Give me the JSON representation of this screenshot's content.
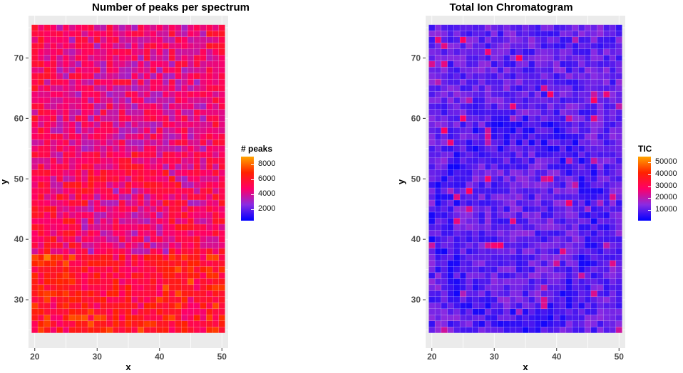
{
  "chart_data": [
    {
      "type": "heatmap",
      "title": "Number of peaks per spectrum",
      "xlabel": "x",
      "ylabel": "y",
      "xlim": [
        19,
        51
      ],
      "ylim": [
        22,
        77
      ],
      "x_range": [
        20,
        50
      ],
      "y_range": [
        25,
        75
      ],
      "xticks": [
        20,
        30,
        40,
        50
      ],
      "yticks": [
        30,
        40,
        50,
        60,
        70
      ],
      "legend": {
        "title": "# peaks",
        "breaks": [
          2000,
          4000,
          6000,
          8000
        ],
        "labels": [
          "2000",
          "4000",
          "6000",
          "8000"
        ],
        "range": [
          500,
          9000
        ],
        "position": "right"
      },
      "colors": [
        "#0000FF",
        "#8A2BE2",
        "#FF0066",
        "#FF2200",
        "#FFA500"
      ],
      "grid": true
    },
    {
      "type": "heatmap",
      "title": "Total Ion Chromatogram",
      "xlabel": "x",
      "ylabel": "y",
      "xlim": [
        19,
        51
      ],
      "ylim": [
        22,
        77
      ],
      "x_range": [
        20,
        50
      ],
      "y_range": [
        25,
        75
      ],
      "xticks": [
        20,
        30,
        40,
        50
      ],
      "yticks": [
        30,
        40,
        50,
        60,
        70
      ],
      "legend": {
        "title": "TIC",
        "breaks": [
          10000,
          20000,
          30000,
          40000,
          50000
        ],
        "labels": [
          "10000",
          "20000",
          "30000",
          "40000",
          "50000"
        ],
        "range": [
          1000,
          55000
        ],
        "position": "right"
      },
      "colors": [
        "#0000FF",
        "#8A2BE2",
        "#FF0066",
        "#FF2200",
        "#FFA500"
      ],
      "grid": true
    }
  ]
}
